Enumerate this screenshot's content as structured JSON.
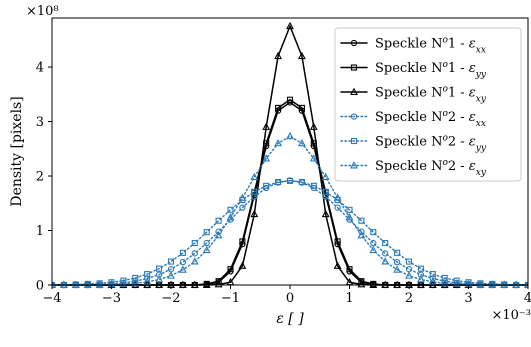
{
  "chart_data": {
    "type": "line",
    "title": "",
    "xlabel": "ε [ ]",
    "ylabel": "Density [pixels]",
    "x_multiplier_label": "×10⁻³",
    "y_multiplier_label": "×10⁸",
    "xlim": [
      -4,
      4
    ],
    "ylim": [
      0,
      4.9
    ],
    "x_scale_exponent": -3,
    "y_scale_exponent": 8,
    "x_ticks": [
      -4,
      -3,
      -2,
      -1,
      0,
      1,
      2,
      3,
      4
    ],
    "x_tick_labels": [
      "−4",
      "−3",
      "−2",
      "−1",
      "0",
      "1",
      "2",
      "3",
      "4"
    ],
    "y_ticks": [
      0,
      1,
      2,
      3,
      4
    ],
    "y_tick_labels": [
      "0",
      "1",
      "2",
      "3",
      "4"
    ],
    "grid": false,
    "legend_position": "top-right",
    "x": [
      -4.0,
      -3.8,
      -3.6,
      -3.4,
      -3.2,
      -3.0,
      -2.8,
      -2.6,
      -2.4,
      -2.2,
      -2.0,
      -1.8,
      -1.6,
      -1.4,
      -1.2,
      -1.0,
      -0.8,
      -0.6,
      -0.4,
      -0.2,
      0.0,
      0.2,
      0.4,
      0.6,
      0.8,
      1.0,
      1.2,
      1.4,
      1.6,
      1.8,
      2.0,
      2.2,
      2.4,
      2.6,
      2.8,
      3.0,
      3.2,
      3.4,
      3.6,
      3.8,
      4.0
    ],
    "series": [
      {
        "label_prefix": "Speckle N",
        "label_sup": "o",
        "label_mid": "1 - ",
        "label_sym": "ε",
        "label_sub": "xx",
        "color": "#000000",
        "line_style": "solid",
        "marker": "circle",
        "values": [
          0,
          0,
          0,
          0,
          0,
          0,
          0,
          0,
          0,
          0,
          0,
          0,
          0,
          0.01,
          0.05,
          0.25,
          0.75,
          1.65,
          2.55,
          3.2,
          3.35,
          3.2,
          2.55,
          1.65,
          0.75,
          0.25,
          0.05,
          0.01,
          0,
          0,
          0,
          0,
          0,
          0,
          0,
          0,
          0,
          0,
          0,
          0,
          0
        ]
      },
      {
        "label_prefix": "Speckle N",
        "label_sup": "o",
        "label_mid": "1 - ",
        "label_sym": "ε",
        "label_sub": "yy",
        "color": "#000000",
        "line_style": "solid",
        "marker": "square",
        "values": [
          0,
          0,
          0,
          0,
          0,
          0,
          0,
          0,
          0,
          0,
          0,
          0,
          0,
          0.02,
          0.07,
          0.29,
          0.8,
          1.7,
          2.6,
          3.25,
          3.4,
          3.25,
          2.6,
          1.7,
          0.8,
          0.29,
          0.07,
          0.02,
          0,
          0,
          0,
          0,
          0,
          0,
          0,
          0,
          0,
          0,
          0,
          0,
          0
        ]
      },
      {
        "label_prefix": "Speckle N",
        "label_sup": "o",
        "label_mid": "1 - ",
        "label_sym": "ε",
        "label_sub": "xy",
        "color": "#000000",
        "line_style": "solid",
        "marker": "triangle",
        "values": [
          0,
          0,
          0,
          0,
          0,
          0,
          0,
          0,
          0,
          0,
          0,
          0,
          0,
          0,
          0.01,
          0.05,
          0.35,
          1.3,
          2.9,
          4.2,
          4.75,
          4.2,
          2.9,
          1.3,
          0.35,
          0.05,
          0.01,
          0,
          0,
          0,
          0,
          0,
          0,
          0,
          0,
          0,
          0,
          0,
          0,
          0,
          0
        ]
      },
      {
        "label_prefix": "Speckle N",
        "label_sup": "o",
        "label_mid": "2 - ",
        "label_sym": "ε",
        "label_sub": "xx",
        "color": "#2a7ab9",
        "line_style": "dotted",
        "marker": "circle",
        "values": [
          0,
          0,
          0,
          0,
          0.01,
          0.02,
          0.04,
          0.07,
          0.12,
          0.19,
          0.29,
          0.42,
          0.58,
          0.77,
          0.98,
          1.2,
          1.42,
          1.62,
          1.78,
          1.88,
          1.92,
          1.88,
          1.78,
          1.62,
          1.42,
          1.2,
          0.98,
          0.77,
          0.58,
          0.42,
          0.29,
          0.19,
          0.12,
          0.07,
          0.04,
          0.02,
          0.01,
          0,
          0,
          0,
          0
        ]
      },
      {
        "label_prefix": "Speckle N",
        "label_sup": "o",
        "label_mid": "2 - ",
        "label_sym": "ε",
        "label_sub": "yy",
        "color": "#2a7ab9",
        "line_style": "dotted",
        "marker": "square",
        "values": [
          0,
          0,
          0.01,
          0.02,
          0.03,
          0.05,
          0.08,
          0.13,
          0.2,
          0.3,
          0.43,
          0.59,
          0.77,
          0.97,
          1.18,
          1.38,
          1.56,
          1.71,
          1.82,
          1.89,
          1.91,
          1.89,
          1.82,
          1.71,
          1.56,
          1.38,
          1.18,
          0.97,
          0.77,
          0.59,
          0.43,
          0.3,
          0.2,
          0.13,
          0.08,
          0.05,
          0.03,
          0.02,
          0.01,
          0,
          0
        ]
      },
      {
        "label_prefix": "Speckle N",
        "label_sup": "o",
        "label_mid": "2 - ",
        "label_sym": "ε",
        "label_sub": "xy",
        "color": "#2a7ab9",
        "line_style": "dotted",
        "marker": "triangle",
        "values": [
          0,
          0,
          0,
          0,
          0,
          0.01,
          0.02,
          0.03,
          0.06,
          0.1,
          0.17,
          0.28,
          0.43,
          0.64,
          0.91,
          1.24,
          1.6,
          1.98,
          2.32,
          2.6,
          2.73,
          2.6,
          2.32,
          1.98,
          1.6,
          1.24,
          0.91,
          0.64,
          0.43,
          0.28,
          0.17,
          0.1,
          0.06,
          0.03,
          0.02,
          0.01,
          0,
          0,
          0,
          0,
          0
        ]
      }
    ]
  }
}
